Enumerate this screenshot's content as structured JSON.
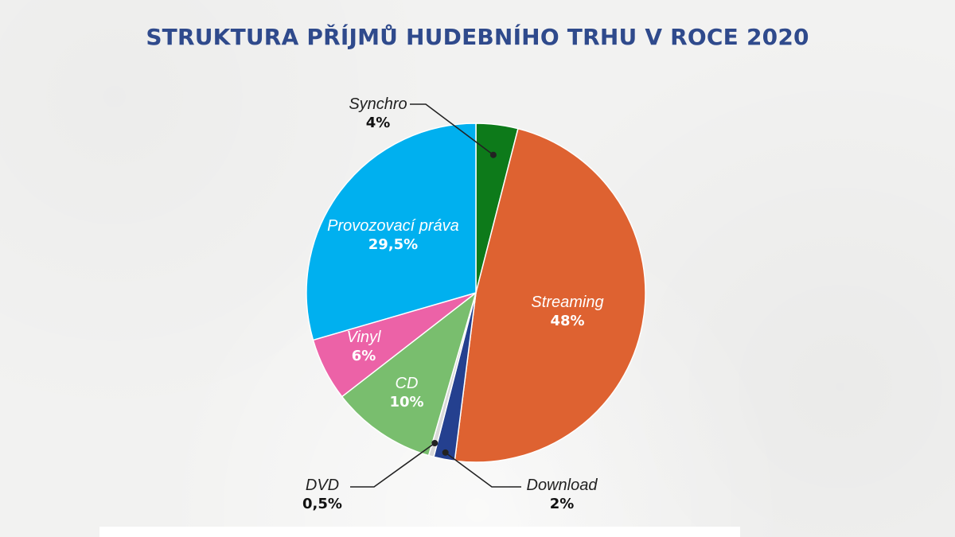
{
  "title": "STRUKTURA PŘÍJMŮ HUDEBNÍHO TRHU V ROCE 2020",
  "chart_data": {
    "type": "pie",
    "title": "STRUKTURA PŘÍJMŮ HUDEBNÍHO TRHU V ROCE 2020",
    "slices": [
      {
        "label": "Synchro",
        "value": 4,
        "value_label": "4%",
        "color": "#0d7a1a"
      },
      {
        "label": "Streaming",
        "value": 48,
        "value_label": "48%",
        "color": "#de6231"
      },
      {
        "label": "Download",
        "value": 2,
        "value_label": "2%",
        "color": "#24408f"
      },
      {
        "label": "DVD",
        "value": 0.5,
        "value_label": "0,5%",
        "color": "#d9d9d9"
      },
      {
        "label": "CD",
        "value": 10,
        "value_label": "10%",
        "color": "#79be6e"
      },
      {
        "label": "Vinyl",
        "value": 6,
        "value_label": "6%",
        "color": "#ec62a7"
      },
      {
        "label": "Provozovací práva",
        "value": 29.5,
        "value_label": "29,5%",
        "color": "#00b0ef"
      }
    ]
  }
}
